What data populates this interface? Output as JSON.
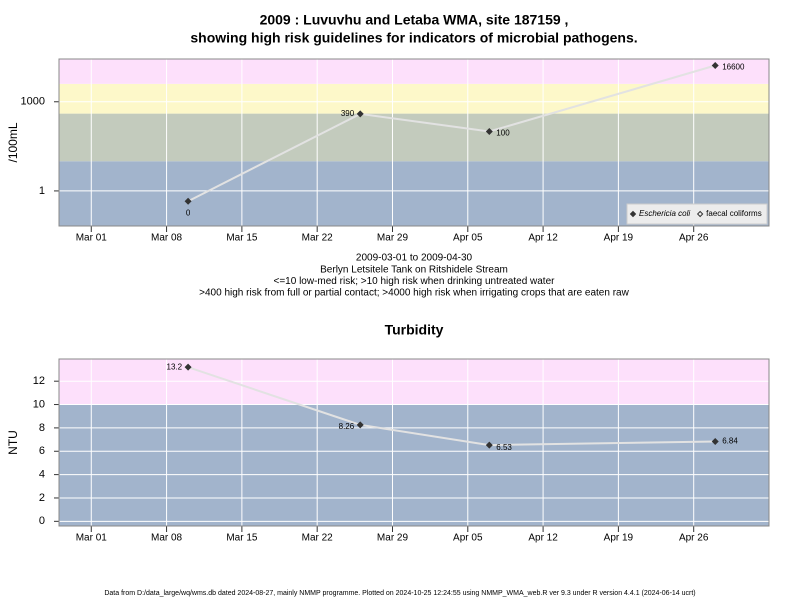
{
  "chart_data": [
    {
      "type": "line",
      "title": [
        "2009 : Luvuvhu and Letaba WMA, site 187159 ,",
        "showing high risk guidelines for indicators of microbial pathogens."
      ],
      "y_label": "/100mL",
      "log_y": true,
      "x": [
        "2009-03-10",
        "2009-03-26",
        "2009-04-07",
        "2009-04-28"
      ],
      "series": [
        {
          "name": "Eschericia coli",
          "color": "#333333",
          "values": [
            0.45,
            390,
            100,
            16600
          ],
          "value_labels": [
            "0",
            "390",
            "100",
            "16600"
          ]
        },
        {
          "name": "faecal coliforms",
          "color": "#333333",
          "values": [
            null,
            null,
            null,
            null
          ]
        }
      ],
      "line_color": "#e2e2e2",
      "bands": [
        {
          "from": 0.066,
          "to": 10,
          "color": "#a2b4cc"
        },
        {
          "from": 10,
          "to": 400,
          "color": "#c3cbbd"
        },
        {
          "from": 400,
          "to": 4000,
          "color": "#fdf8c9"
        },
        {
          "from": 4000,
          "to": 27500,
          "color": "#fde0fb"
        }
      ],
      "xlim": [
        "2009-02-26",
        "2009-05-03"
      ],
      "xticks": [
        {
          "value": "2009-03-01",
          "label": "Mar 01"
        },
        {
          "value": "2009-03-08",
          "label": "Mar 08"
        },
        {
          "value": "2009-03-15",
          "label": "Mar 15"
        },
        {
          "value": "2009-03-22",
          "label": "Mar 22"
        },
        {
          "value": "2009-03-29",
          "label": "Mar 29"
        },
        {
          "value": "2009-04-05",
          "label": "Apr 05"
        },
        {
          "value": "2009-04-12",
          "label": "Apr 12"
        },
        {
          "value": "2009-04-19",
          "label": "Apr 19"
        },
        {
          "value": "2009-04-26",
          "label": "Apr 26"
        }
      ],
      "ylim": [
        0.066,
        27500
      ],
      "yticks": [
        1,
        1000
      ],
      "grid": true,
      "legend": "bottom-right",
      "notes": [
        "2009-03-01 to 2009-04-30",
        "Berlyn Letsitele Tank on Ritshidele Stream",
        "<=10 low-med risk; >10 high risk when drinking untreated water",
        ">400 high risk from full or partial contact; >4000 high risk when irrigating crops that are eaten raw"
      ]
    },
    {
      "type": "line",
      "title": [
        "Turbidity"
      ],
      "y_label": "NTU",
      "log_y": false,
      "x": [
        "2009-03-10",
        "2009-03-26",
        "2009-04-07",
        "2009-04-28"
      ],
      "series": [
        {
          "name": "Turbidity",
          "color": "#333333",
          "values": [
            13.2,
            8.26,
            6.53,
            6.84
          ]
        }
      ],
      "line_color": "#e2e2e2",
      "bands": [
        {
          "from": -0.4,
          "to": 10,
          "color": "#a2b4cc"
        },
        {
          "from": 10,
          "to": 13.9,
          "color": "#fde0fb"
        }
      ],
      "xlim": [
        "2009-02-26",
        "2009-05-03"
      ],
      "xticks": [
        {
          "value": "2009-03-01",
          "label": "Mar 01"
        },
        {
          "value": "2009-03-08",
          "label": "Mar 08"
        },
        {
          "value": "2009-03-15",
          "label": "Mar 15"
        },
        {
          "value": "2009-03-22",
          "label": "Mar 22"
        },
        {
          "value": "2009-03-29",
          "label": "Mar 29"
        },
        {
          "value": "2009-04-05",
          "label": "Apr 05"
        },
        {
          "value": "2009-04-12",
          "label": "Apr 12"
        },
        {
          "value": "2009-04-19",
          "label": "Apr 19"
        },
        {
          "value": "2009-04-26",
          "label": "Apr 26"
        }
      ],
      "ylim": [
        -0.4,
        13.9
      ],
      "yticks": [
        0,
        2,
        4,
        6,
        8,
        10,
        12
      ],
      "grid": true
    }
  ],
  "footer": "Data from D:/data_large/wq/wms.db dated 2024-08-27, mainly NMMP programme. Plotted on 2024-10-25 12:24:55 using NMMP_WMA_web.R ver 9.3 under R version 4.4.1 (2024-06-14 ucrt)"
}
